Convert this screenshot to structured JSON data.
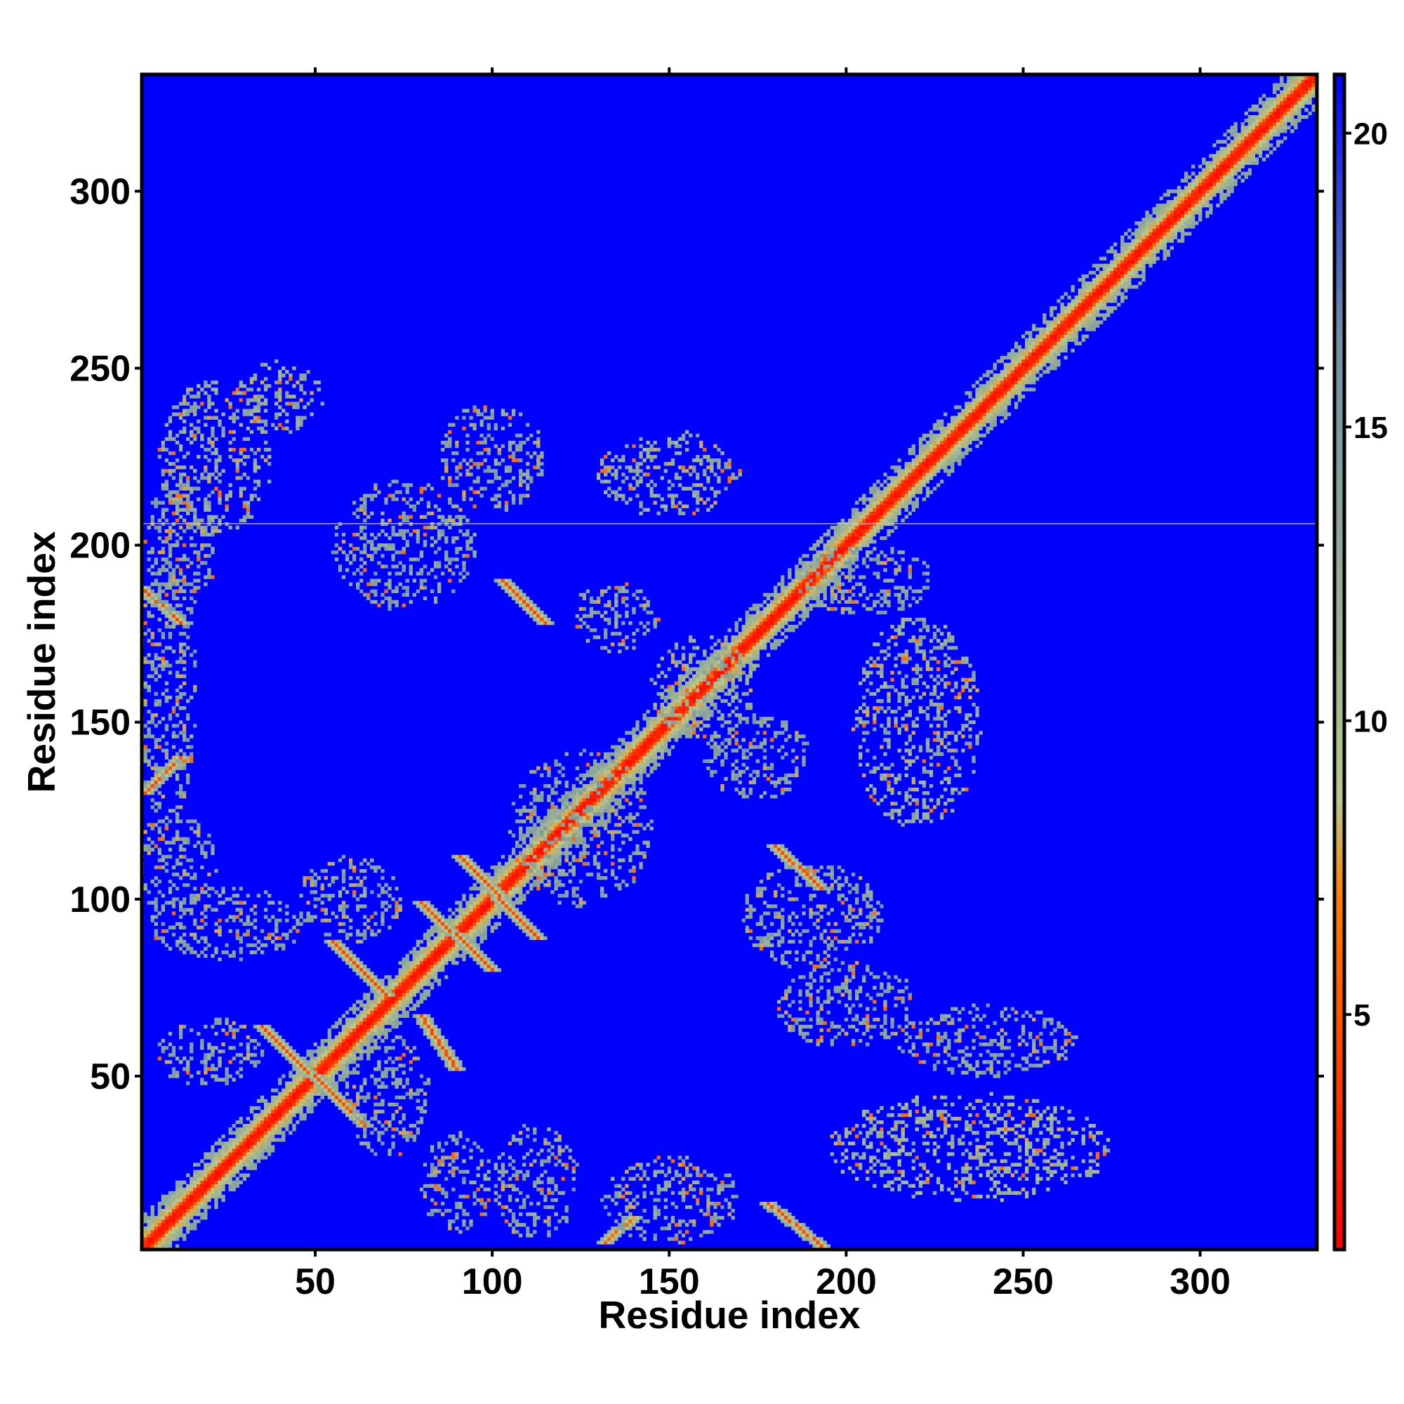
{
  "chart_data": {
    "type": "heatmap",
    "title": "",
    "xlabel": "Residue index",
    "ylabel": "Residue index",
    "xlim": [
      1,
      333
    ],
    "ylim": [
      1,
      333
    ],
    "x_ticks": [
      50,
      100,
      150,
      200,
      250,
      300
    ],
    "y_ticks": [
      50,
      100,
      150,
      200,
      250,
      300
    ],
    "colorbar": {
      "range": [
        1,
        21
      ],
      "ticks": [
        5,
        10,
        15,
        20
      ],
      "colors": [
        "#ff0000",
        "#ff8000",
        "#b8c78a",
        "#6f8fa8",
        "#0000ff"
      ],
      "color_stops": [
        1,
        7,
        9,
        17,
        21
      ]
    },
    "grid": false,
    "legend": "colorbar right",
    "background_value": 21,
    "features": [
      {
        "kind": "diagonal",
        "from": [
          1,
          1
        ],
        "to": [
          333,
          333
        ],
        "value": 1.5
      },
      {
        "kind": "band",
        "from": [
          1,
          188
        ],
        "to": [
          12,
          178
        ],
        "value": 4
      },
      {
        "kind": "band",
        "from": [
          2,
          130
        ],
        "to": [
          12,
          140
        ],
        "value": 4
      },
      {
        "kind": "band",
        "from": [
          35,
          64
        ],
        "to": [
          64,
          36
        ],
        "value": 4
      },
      {
        "kind": "band",
        "from": [
          55,
          88
        ],
        "to": [
          70,
          73
        ],
        "value": 4
      },
      {
        "kind": "band",
        "from": [
          80,
          67
        ],
        "to": [
          90,
          52
        ],
        "value": 4
      },
      {
        "kind": "band",
        "from": [
          80,
          99
        ],
        "to": [
          100,
          80
        ],
        "value": 4
      },
      {
        "kind": "band",
        "from": [
          91,
          112
        ],
        "to": [
          113,
          89
        ],
        "value": 4
      },
      {
        "kind": "band",
        "from": [
          103,
          190
        ],
        "to": [
          115,
          178
        ],
        "value": 4
      },
      {
        "kind": "band",
        "from": [
          180,
          115
        ],
        "to": [
          193,
          103
        ],
        "value": 4
      },
      {
        "kind": "band",
        "from": [
          178,
          14
        ],
        "to": [
          193,
          2
        ],
        "value": 4
      },
      {
        "kind": "band",
        "from": [
          132,
          3
        ],
        "to": [
          140,
          10
        ],
        "value": 5
      },
      {
        "kind": "cluster",
        "center": [
          22,
          225
        ],
        "spread": [
          16,
          22
        ],
        "value": 11
      },
      {
        "kind": "cluster",
        "center": [
          40,
          242
        ],
        "spread": [
          12,
          10
        ],
        "value": 11
      },
      {
        "kind": "cluster",
        "center": [
          12,
          200
        ],
        "spread": [
          10,
          20
        ],
        "value": 12
      },
      {
        "kind": "cluster",
        "center": [
          8,
          160
        ],
        "spread": [
          8,
          40
        ],
        "value": 12
      },
      {
        "kind": "cluster",
        "center": [
          10,
          110
        ],
        "spread": [
          12,
          14
        ],
        "value": 12
      },
      {
        "kind": "cluster",
        "center": [
          25,
          93
        ],
        "spread": [
          22,
          10
        ],
        "value": 12
      },
      {
        "kind": "cluster",
        "center": [
          60,
          100
        ],
        "spread": [
          15,
          12
        ],
        "value": 12
      },
      {
        "kind": "cluster",
        "center": [
          20,
          57
        ],
        "spread": [
          15,
          10
        ],
        "value": 12
      },
      {
        "kind": "cluster",
        "center": [
          70,
          45
        ],
        "spread": [
          12,
          18
        ],
        "value": 12
      },
      {
        "kind": "cluster",
        "center": [
          90,
          20
        ],
        "spread": [
          10,
          14
        ],
        "value": 12
      },
      {
        "kind": "cluster",
        "center": [
          112,
          20
        ],
        "spread": [
          12,
          16
        ],
        "value": 12
      },
      {
        "kind": "cluster",
        "center": [
          75,
          200
        ],
        "spread": [
          20,
          18
        ],
        "value": 12
      },
      {
        "kind": "cluster",
        "center": [
          125,
          120
        ],
        "spread": [
          20,
          22
        ],
        "value": 12
      },
      {
        "kind": "cluster",
        "center": [
          150,
          220
        ],
        "spread": [
          20,
          12
        ],
        "value": 11
      },
      {
        "kind": "cluster",
        "center": [
          160,
          160
        ],
        "spread": [
          15,
          15
        ],
        "value": 11
      },
      {
        "kind": "cluster",
        "center": [
          135,
          180
        ],
        "spread": [
          12,
          10
        ],
        "value": 12
      },
      {
        "kind": "cluster",
        "center": [
          175,
          140
        ],
        "spread": [
          15,
          12
        ],
        "value": 12
      },
      {
        "kind": "cluster",
        "center": [
          190,
          95
        ],
        "spread": [
          20,
          15
        ],
        "value": 12
      },
      {
        "kind": "cluster",
        "center": [
          200,
          70
        ],
        "spread": [
          20,
          12
        ],
        "value": 12
      },
      {
        "kind": "cluster",
        "center": [
          220,
          150
        ],
        "spread": [
          18,
          30
        ],
        "value": 11
      },
      {
        "kind": "cluster",
        "center": [
          205,
          190
        ],
        "spread": [
          20,
          10
        ],
        "value": 12
      },
      {
        "kind": "cluster",
        "center": [
          235,
          30
        ],
        "spread": [
          40,
          15
        ],
        "value": 10
      },
      {
        "kind": "cluster",
        "center": [
          240,
          60
        ],
        "spread": [
          25,
          10
        ],
        "value": 12
      },
      {
        "kind": "cluster",
        "center": [
          150,
          15
        ],
        "spread": [
          20,
          12
        ],
        "value": 12
      },
      {
        "kind": "cluster",
        "center": [
          100,
          225
        ],
        "spread": [
          15,
          15
        ],
        "value": 12
      }
    ]
  }
}
